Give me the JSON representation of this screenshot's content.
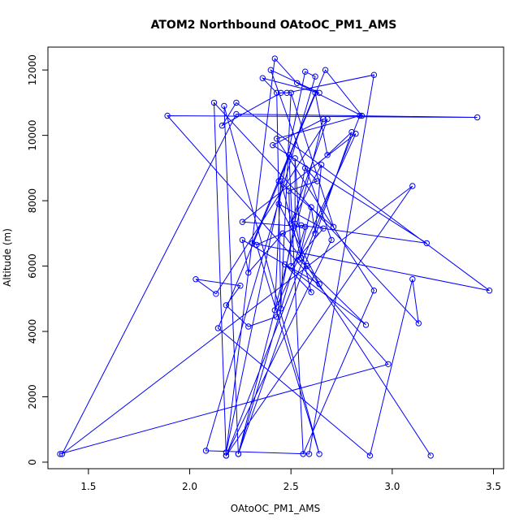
{
  "chart_data": {
    "type": "line",
    "title": "ATOM2 Northbound OAtoOC_PM1_AMS",
    "xlabel": "OAtoOC_PM1_AMS",
    "ylabel": "Altitude (m)",
    "xlim": [
      1.3,
      3.55
    ],
    "ylim": [
      -200,
      12700
    ],
    "xticks": [
      1.5,
      2.0,
      2.5,
      3.0,
      3.5
    ],
    "xtick_labels": [
      "1.5",
      "2.0",
      "2.5",
      "3.0",
      "3.5"
    ],
    "yticks": [
      0,
      2000,
      4000,
      6000,
      8000,
      10000,
      12000
    ],
    "ytick_labels": [
      "0",
      "2000",
      "4000",
      "6000",
      "8000",
      "10000",
      "12000"
    ],
    "grid": false,
    "legend": "none",
    "line_color": "#0000ff",
    "marker": "open-circle",
    "series": [
      {
        "x": [
          1.36,
          2.98,
          1.89,
          3.42,
          2.23,
          1.37,
          3.1,
          2.18,
          2.12,
          3.13,
          3.1,
          2.89,
          2.14,
          2.67,
          2.85,
          2.53,
          2.42,
          2.18,
          2.57,
          2.62,
          2.08,
          2.59,
          2.91,
          2.48,
          2.45,
          2.16,
          2.23,
          3.48,
          2.31,
          2.49,
          2.56,
          2.91,
          2.43,
          2.84,
          2.18,
          2.7,
          2.4,
          2.64,
          2.36,
          2.43,
          2.45,
          2.5,
          2.71,
          2.44,
          2.62,
          2.68,
          2.8,
          2.24,
          2.17,
          2.64,
          2.33,
          2.55,
          3.17,
          2.41,
          2.66,
          2.24,
          2.57,
          2.26,
          2.82,
          2.42,
          2.45,
          2.55,
          2.52,
          2.52,
          2.6,
          2.47,
          2.87,
          2.54,
          2.6,
          2.62,
          2.65,
          2.5,
          2.68,
          2.13,
          2.03,
          2.25,
          2.18,
          2.29,
          2.43,
          2.57,
          2.63,
          2.49,
          2.5,
          2.66,
          2.44,
          2.64,
          2.26,
          2.29,
          2.46,
          2.58,
          3.19
        ],
        "y": [
          250,
          3000,
          10600,
          10550,
          10650,
          250,
          8450,
          200,
          11000,
          4250,
          5600,
          200,
          4100,
          12000,
          10600,
          11600,
          12350,
          300,
          11950,
          11800,
          350,
          250,
          11850,
          11300,
          11300,
          10300,
          11000,
          5250,
          6700,
          9400,
          250,
          5250,
          9900,
          10600,
          200,
          6800,
          12000,
          11300,
          11750,
          11300,
          4700,
          11300,
          7200,
          8600,
          11300,
          9400,
          10100,
          250,
          10900,
          250,
          6650,
          7250,
          6700,
          9700,
          10500,
          250,
          7200,
          7350,
          10050,
          4650,
          8600,
          6250,
          9300,
          7300,
          5200,
          6050,
          4200,
          6200,
          7800,
          7000,
          9100,
          7300,
          10500,
          5150,
          5600,
          5400,
          4800,
          4150,
          4450,
          9000,
          8600,
          8300,
          6000,
          7150,
          7900,
          5450,
          6800,
          5800,
          7000,
          6000,
          200
        ]
      }
    ]
  }
}
